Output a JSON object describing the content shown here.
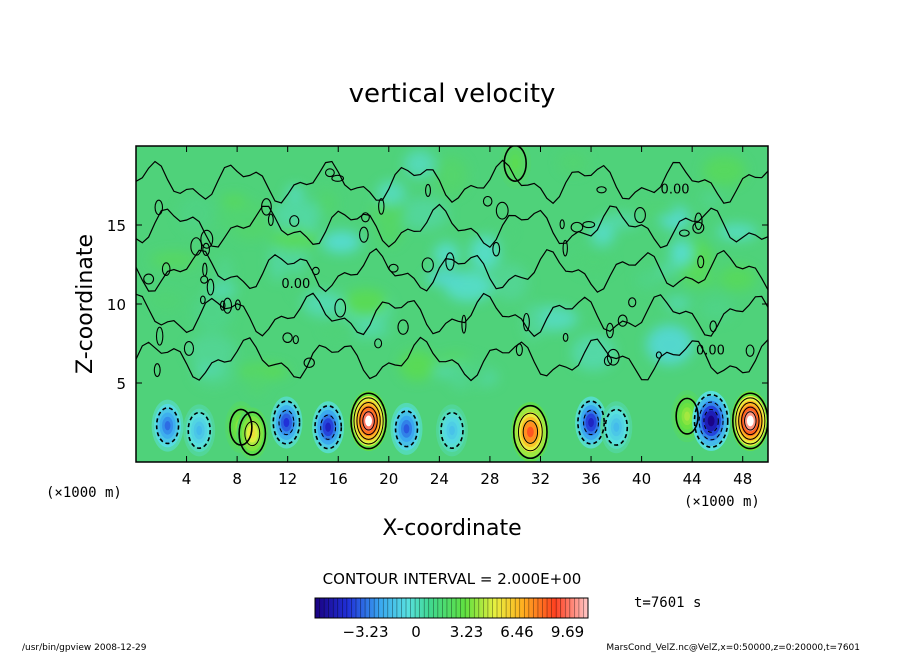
{
  "chart_data": {
    "type": "heatmap",
    "title": "vertical velocity",
    "xlabel": "X-coordinate",
    "ylabel": "Z-coordinate",
    "x_unit_label": "(×1000 m)",
    "y_unit_label": "(×1000 m)",
    "x_ticks": [
      4,
      8,
      12,
      16,
      20,
      24,
      28,
      32,
      36,
      40,
      44,
      48
    ],
    "y_ticks": [
      5,
      10,
      15
    ],
    "xlim": [
      0,
      50
    ],
    "ylim": [
      0,
      20
    ],
    "contour_interval_text": "CONTOUR INTERVAL = 2.000E+00",
    "contour_label": "0.00",
    "colorbar_ticks": [
      "−3.23",
      "0",
      "3.23",
      "6.46",
      "9.69"
    ],
    "colorbar_range": [
      -6.46,
      11.0
    ],
    "time_label": "t=7601 s",
    "features": [
      {
        "x": 2.5,
        "z": 2.3,
        "value": -3.5
      },
      {
        "x": 5.0,
        "z": 2.0,
        "value": -2.0
      },
      {
        "x": 8.3,
        "z": 2.2,
        "value": 2.5
      },
      {
        "x": 9.2,
        "z": 1.8,
        "value": 4.0
      },
      {
        "x": 11.9,
        "z": 2.5,
        "value": -4.5
      },
      {
        "x": 15.2,
        "z": 2.2,
        "value": -5.0
      },
      {
        "x": 18.4,
        "z": 2.6,
        "value": 10.5
      },
      {
        "x": 21.4,
        "z": 2.1,
        "value": -3.8
      },
      {
        "x": 25.0,
        "z": 2.0,
        "value": -1.8
      },
      {
        "x": 31.2,
        "z": 1.9,
        "value": 7.5
      },
      {
        "x": 36.0,
        "z": 2.5,
        "value": -5.0
      },
      {
        "x": 38.0,
        "z": 2.2,
        "value": -2.0
      },
      {
        "x": 43.6,
        "z": 2.9,
        "value": 2.5
      },
      {
        "x": 45.5,
        "z": 2.6,
        "value": -6.3
      },
      {
        "x": 48.6,
        "z": 2.6,
        "value": 11.0
      },
      {
        "x": 30.0,
        "z": 18.9,
        "value": 1.0
      }
    ],
    "colors": {
      "background_field": "#4fd27a",
      "frame": "#000000"
    }
  },
  "footer": {
    "left": "/usr/bin/gpview   2008-12-29",
    "right": "MarsCond_VelZ.nc@VelZ,x=0:50000,z=0:20000,t=7601"
  }
}
